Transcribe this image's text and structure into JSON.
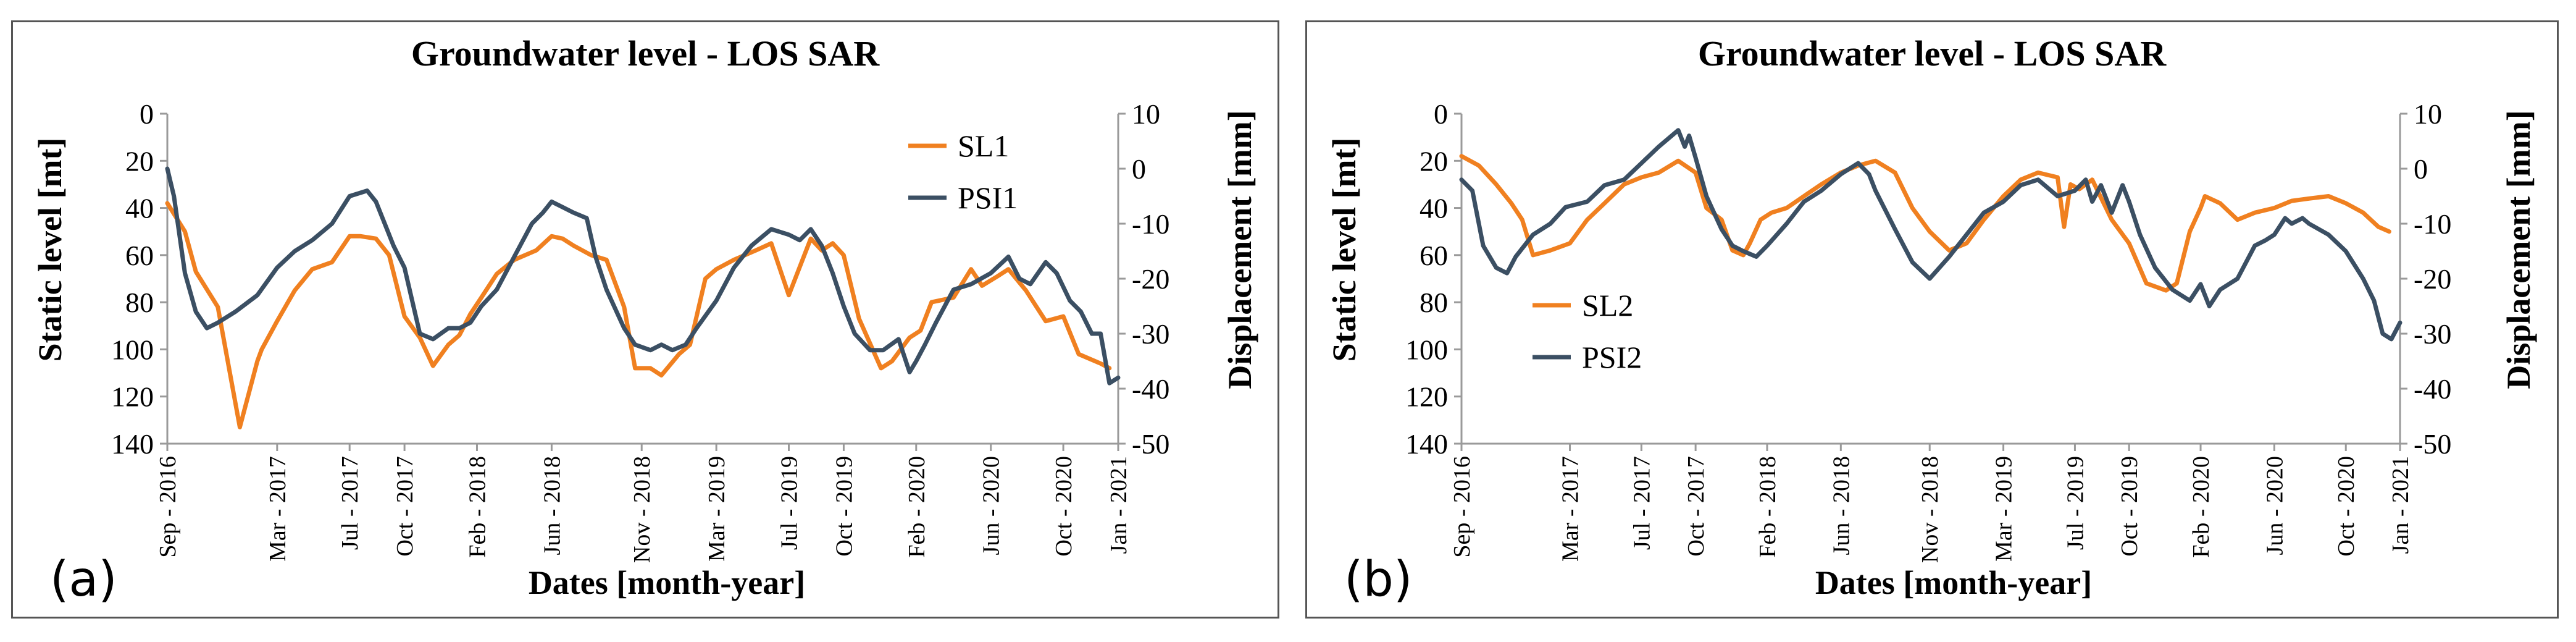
{
  "chart_data": [
    {
      "panel_label": "(a)",
      "type": "line",
      "title": "Groundwater level - LOS SAR",
      "xlabel": "Dates [month-year]",
      "ylabel_left": "Static level [mt]",
      "ylabel_right": "Displacement [mm]",
      "y_left_ticks": [
        "0",
        "20",
        "40",
        "60",
        "80",
        "100",
        "120",
        "140"
      ],
      "y_right_ticks": [
        "10",
        "0",
        "-10",
        "-20",
        "-30",
        "-40",
        "-50"
      ],
      "x_ticks": [
        "Sep - 2016",
        "Mar - 2017",
        "Jul - 2017",
        "Oct - 2017",
        "Feb - 2018",
        "Jun - 2018",
        "Nov - 2018",
        "Mar - 2019",
        "Jul - 2019",
        "Oct - 2019",
        "Feb - 2020",
        "Jun - 2020",
        "Oct - 2020",
        "Jan - 2021"
      ],
      "x_tick_years": [
        2016.67,
        2017.17,
        2017.5,
        2017.75,
        2018.08,
        2018.42,
        2018.83,
        2019.17,
        2019.5,
        2019.75,
        2020.08,
        2020.42,
        2020.75,
        2021.0
      ],
      "x_range": [
        2016.67,
        2021.0
      ],
      "y_left_range": [
        0,
        140
      ],
      "y_right_range": [
        10,
        -50
      ],
      "legend_position": "upper-right",
      "colors": {
        "sl": "#F08020",
        "psi": "#3B4F63",
        "frame": "#555555"
      },
      "series": [
        {
          "name": "SL1",
          "axis": "left",
          "color": "#F08020",
          "x": [
            2016.67,
            2016.75,
            2016.8,
            2016.9,
            2017.0,
            2017.08,
            2017.1,
            2017.17,
            2017.25,
            2017.33,
            2017.42,
            2017.5,
            2017.55,
            2017.62,
            2017.68,
            2017.75,
            2017.82,
            2017.88,
            2017.95,
            2018.0,
            2018.05,
            2018.1,
            2018.17,
            2018.25,
            2018.35,
            2018.42,
            2018.47,
            2018.52,
            2018.6,
            2018.67,
            2018.75,
            2018.8,
            2018.87,
            2018.92,
            2019.0,
            2019.05,
            2019.12,
            2019.17,
            2019.25,
            2019.35,
            2019.42,
            2019.5,
            2019.55,
            2019.6,
            2019.65,
            2019.7,
            2019.75,
            2019.82,
            2019.92,
            2019.97,
            2020.05,
            2020.1,
            2020.15,
            2020.25,
            2020.33,
            2020.38,
            2020.45,
            2020.5,
            2020.58,
            2020.67,
            2020.75,
            2020.82,
            2020.92,
            2020.96
          ],
          "y": [
            38,
            50,
            67,
            82,
            133,
            105,
            100,
            88,
            75,
            66,
            63,
            52,
            52,
            53,
            60,
            86,
            95,
            107,
            98,
            94,
            85,
            78,
            68,
            62,
            58,
            52,
            53,
            56,
            60,
            62,
            82,
            108,
            108,
            111,
            102,
            98,
            70,
            66,
            62,
            58,
            55,
            77,
            65,
            53,
            58,
            55,
            60,
            87,
            108,
            105,
            95,
            92,
            80,
            78,
            66,
            73,
            69,
            66,
            75,
            88,
            86,
            102,
            106,
            108
          ]
        },
        {
          "name": "PSI1",
          "axis": "right",
          "color": "#3B4F63",
          "x": [
            2016.67,
            2016.7,
            2016.75,
            2016.8,
            2016.85,
            2016.9,
            2016.98,
            2017.08,
            2017.17,
            2017.25,
            2017.33,
            2017.42,
            2017.5,
            2017.58,
            2017.62,
            2017.67,
            2017.7,
            2017.75,
            2017.82,
            2017.88,
            2017.95,
            2018.0,
            2018.05,
            2018.1,
            2018.17,
            2018.25,
            2018.33,
            2018.38,
            2018.42,
            2018.47,
            2018.52,
            2018.58,
            2018.62,
            2018.67,
            2018.75,
            2018.8,
            2018.87,
            2018.92,
            2018.97,
            2019.03,
            2019.08,
            2019.17,
            2019.25,
            2019.33,
            2019.42,
            2019.5,
            2019.55,
            2019.6,
            2019.65,
            2019.7,
            2019.75,
            2019.8,
            2019.87,
            2019.93,
            2020.0,
            2020.05,
            2020.08,
            2020.12,
            2020.17,
            2020.25,
            2020.33,
            2020.42,
            2020.5,
            2020.55,
            2020.6,
            2020.67,
            2020.72,
            2020.78,
            2020.83,
            2020.88,
            2020.92,
            2020.96,
            2021.0
          ],
          "y": [
            0,
            -5,
            -19,
            -26,
            -29,
            -28,
            -26,
            -23,
            -18,
            -15,
            -13,
            -10,
            -5,
            -4,
            -6,
            -11,
            -14,
            -18,
            -30,
            -31,
            -29,
            -29,
            -28,
            -25,
            -22,
            -16,
            -10,
            -8,
            -6,
            -7,
            -8,
            -9,
            -16,
            -22,
            -29,
            -32,
            -33,
            -32,
            -33,
            -32,
            -29,
            -24,
            -18,
            -14,
            -11,
            -12,
            -13,
            -11,
            -14,
            -19,
            -25,
            -30,
            -33,
            -33,
            -31,
            -37,
            -35,
            -32,
            -28,
            -22,
            -21,
            -19,
            -16,
            -20,
            -21,
            -17,
            -19,
            -24,
            -26,
            -30,
            -30,
            -39,
            -38
          ]
        }
      ]
    },
    {
      "panel_label": "(b)",
      "type": "line",
      "title": "Groundwater level - LOS SAR",
      "xlabel": "Dates [month-year]",
      "ylabel_left": "Static level [mt]",
      "ylabel_right": "Displacement [mm]",
      "y_left_ticks": [
        "0",
        "20",
        "40",
        "60",
        "80",
        "100",
        "120",
        "140"
      ],
      "y_right_ticks": [
        "10",
        "0",
        "-10",
        "-20",
        "-30",
        "-40",
        "-50"
      ],
      "x_ticks": [
        "Sep - 2016",
        "Mar - 2017",
        "Jul - 2017",
        "Oct - 2017",
        "Feb - 2018",
        "Jun - 2018",
        "Nov - 2018",
        "Mar - 2019",
        "Jul - 2019",
        "Oct - 2019",
        "Feb - 2020",
        "Jun - 2020",
        "Oct - 2020",
        "Jan - 2021"
      ],
      "x_tick_years": [
        2016.67,
        2017.17,
        2017.5,
        2017.75,
        2018.08,
        2018.42,
        2018.83,
        2019.17,
        2019.5,
        2019.75,
        2020.08,
        2020.42,
        2020.75,
        2021.0
      ],
      "x_range": [
        2016.67,
        2021.0
      ],
      "y_left_range": [
        0,
        140
      ],
      "y_right_range": [
        10,
        -50
      ],
      "legend_position": "lower-left",
      "colors": {
        "sl": "#F08020",
        "psi": "#3B4F63",
        "frame": "#555555"
      },
      "series": [
        {
          "name": "SL2",
          "axis": "left",
          "color": "#F08020",
          "x": [
            2016.67,
            2016.75,
            2016.83,
            2016.9,
            2016.95,
            2017.0,
            2017.08,
            2017.17,
            2017.25,
            2017.33,
            2017.42,
            2017.5,
            2017.58,
            2017.67,
            2017.75,
            2017.8,
            2017.87,
            2017.92,
            2017.97,
            2018.0,
            2018.05,
            2018.1,
            2018.17,
            2018.25,
            2018.33,
            2018.42,
            2018.5,
            2018.58,
            2018.67,
            2018.75,
            2018.83,
            2018.92,
            2019.0,
            2019.08,
            2019.17,
            2019.25,
            2019.33,
            2019.42,
            2019.45,
            2019.48,
            2019.52,
            2019.58,
            2019.67,
            2019.75,
            2019.83,
            2019.92,
            2019.97,
            2020.03,
            2020.08,
            2020.1,
            2020.17,
            2020.25,
            2020.33,
            2020.42,
            2020.5,
            2020.58,
            2020.67,
            2020.75,
            2020.83,
            2020.9,
            2020.95
          ],
          "y": [
            18,
            22,
            30,
            38,
            45,
            60,
            58,
            55,
            45,
            38,
            30,
            27,
            25,
            20,
            25,
            40,
            45,
            58,
            60,
            55,
            45,
            42,
            40,
            35,
            30,
            25,
            22,
            20,
            25,
            40,
            50,
            58,
            55,
            45,
            35,
            28,
            25,
            27,
            48,
            30,
            32,
            28,
            45,
            55,
            72,
            75,
            72,
            50,
            40,
            35,
            38,
            45,
            42,
            40,
            37,
            36,
            35,
            38,
            42,
            48,
            50
          ]
        },
        {
          "name": "PSI2",
          "axis": "right",
          "color": "#3B4F63",
          "x": [
            2016.67,
            2016.72,
            2016.77,
            2016.83,
            2016.88,
            2016.92,
            2017.0,
            2017.08,
            2017.15,
            2017.25,
            2017.33,
            2017.42,
            2017.5,
            2017.58,
            2017.67,
            2017.7,
            2017.72,
            2017.75,
            2017.8,
            2017.87,
            2017.92,
            2017.97,
            2018.03,
            2018.08,
            2018.17,
            2018.25,
            2018.33,
            2018.42,
            2018.5,
            2018.55,
            2018.58,
            2018.67,
            2018.75,
            2018.83,
            2018.92,
            2019.0,
            2019.08,
            2019.17,
            2019.25,
            2019.33,
            2019.42,
            2019.5,
            2019.55,
            2019.58,
            2019.62,
            2019.67,
            2019.72,
            2019.75,
            2019.8,
            2019.87,
            2019.95,
            2020.03,
            2020.08,
            2020.12,
            2020.17,
            2020.25,
            2020.33,
            2020.38,
            2020.42,
            2020.47,
            2020.5,
            2020.55,
            2020.58,
            2020.67,
            2020.75,
            2020.83,
            2020.88,
            2020.92,
            2020.96,
            2021.0
          ],
          "y": [
            -2,
            -4,
            -14,
            -18,
            -19,
            -16,
            -12,
            -10,
            -7,
            -6,
            -3,
            -2,
            1,
            4,
            7,
            4,
            6,
            2,
            -5,
            -11,
            -14,
            -15,
            -16,
            -14,
            -10,
            -6,
            -4,
            -1,
            1,
            -1,
            -4,
            -11,
            -17,
            -20,
            -16,
            -12,
            -8,
            -6,
            -3,
            -2,
            -5,
            -4,
            -2,
            -6,
            -3,
            -8,
            -3,
            -6,
            -12,
            -18,
            -22,
            -24,
            -21,
            -25,
            -22,
            -20,
            -14,
            -13,
            -12,
            -9,
            -10,
            -9,
            -10,
            -12,
            -15,
            -20,
            -24,
            -30,
            -31,
            -28
          ]
        }
      ]
    }
  ]
}
